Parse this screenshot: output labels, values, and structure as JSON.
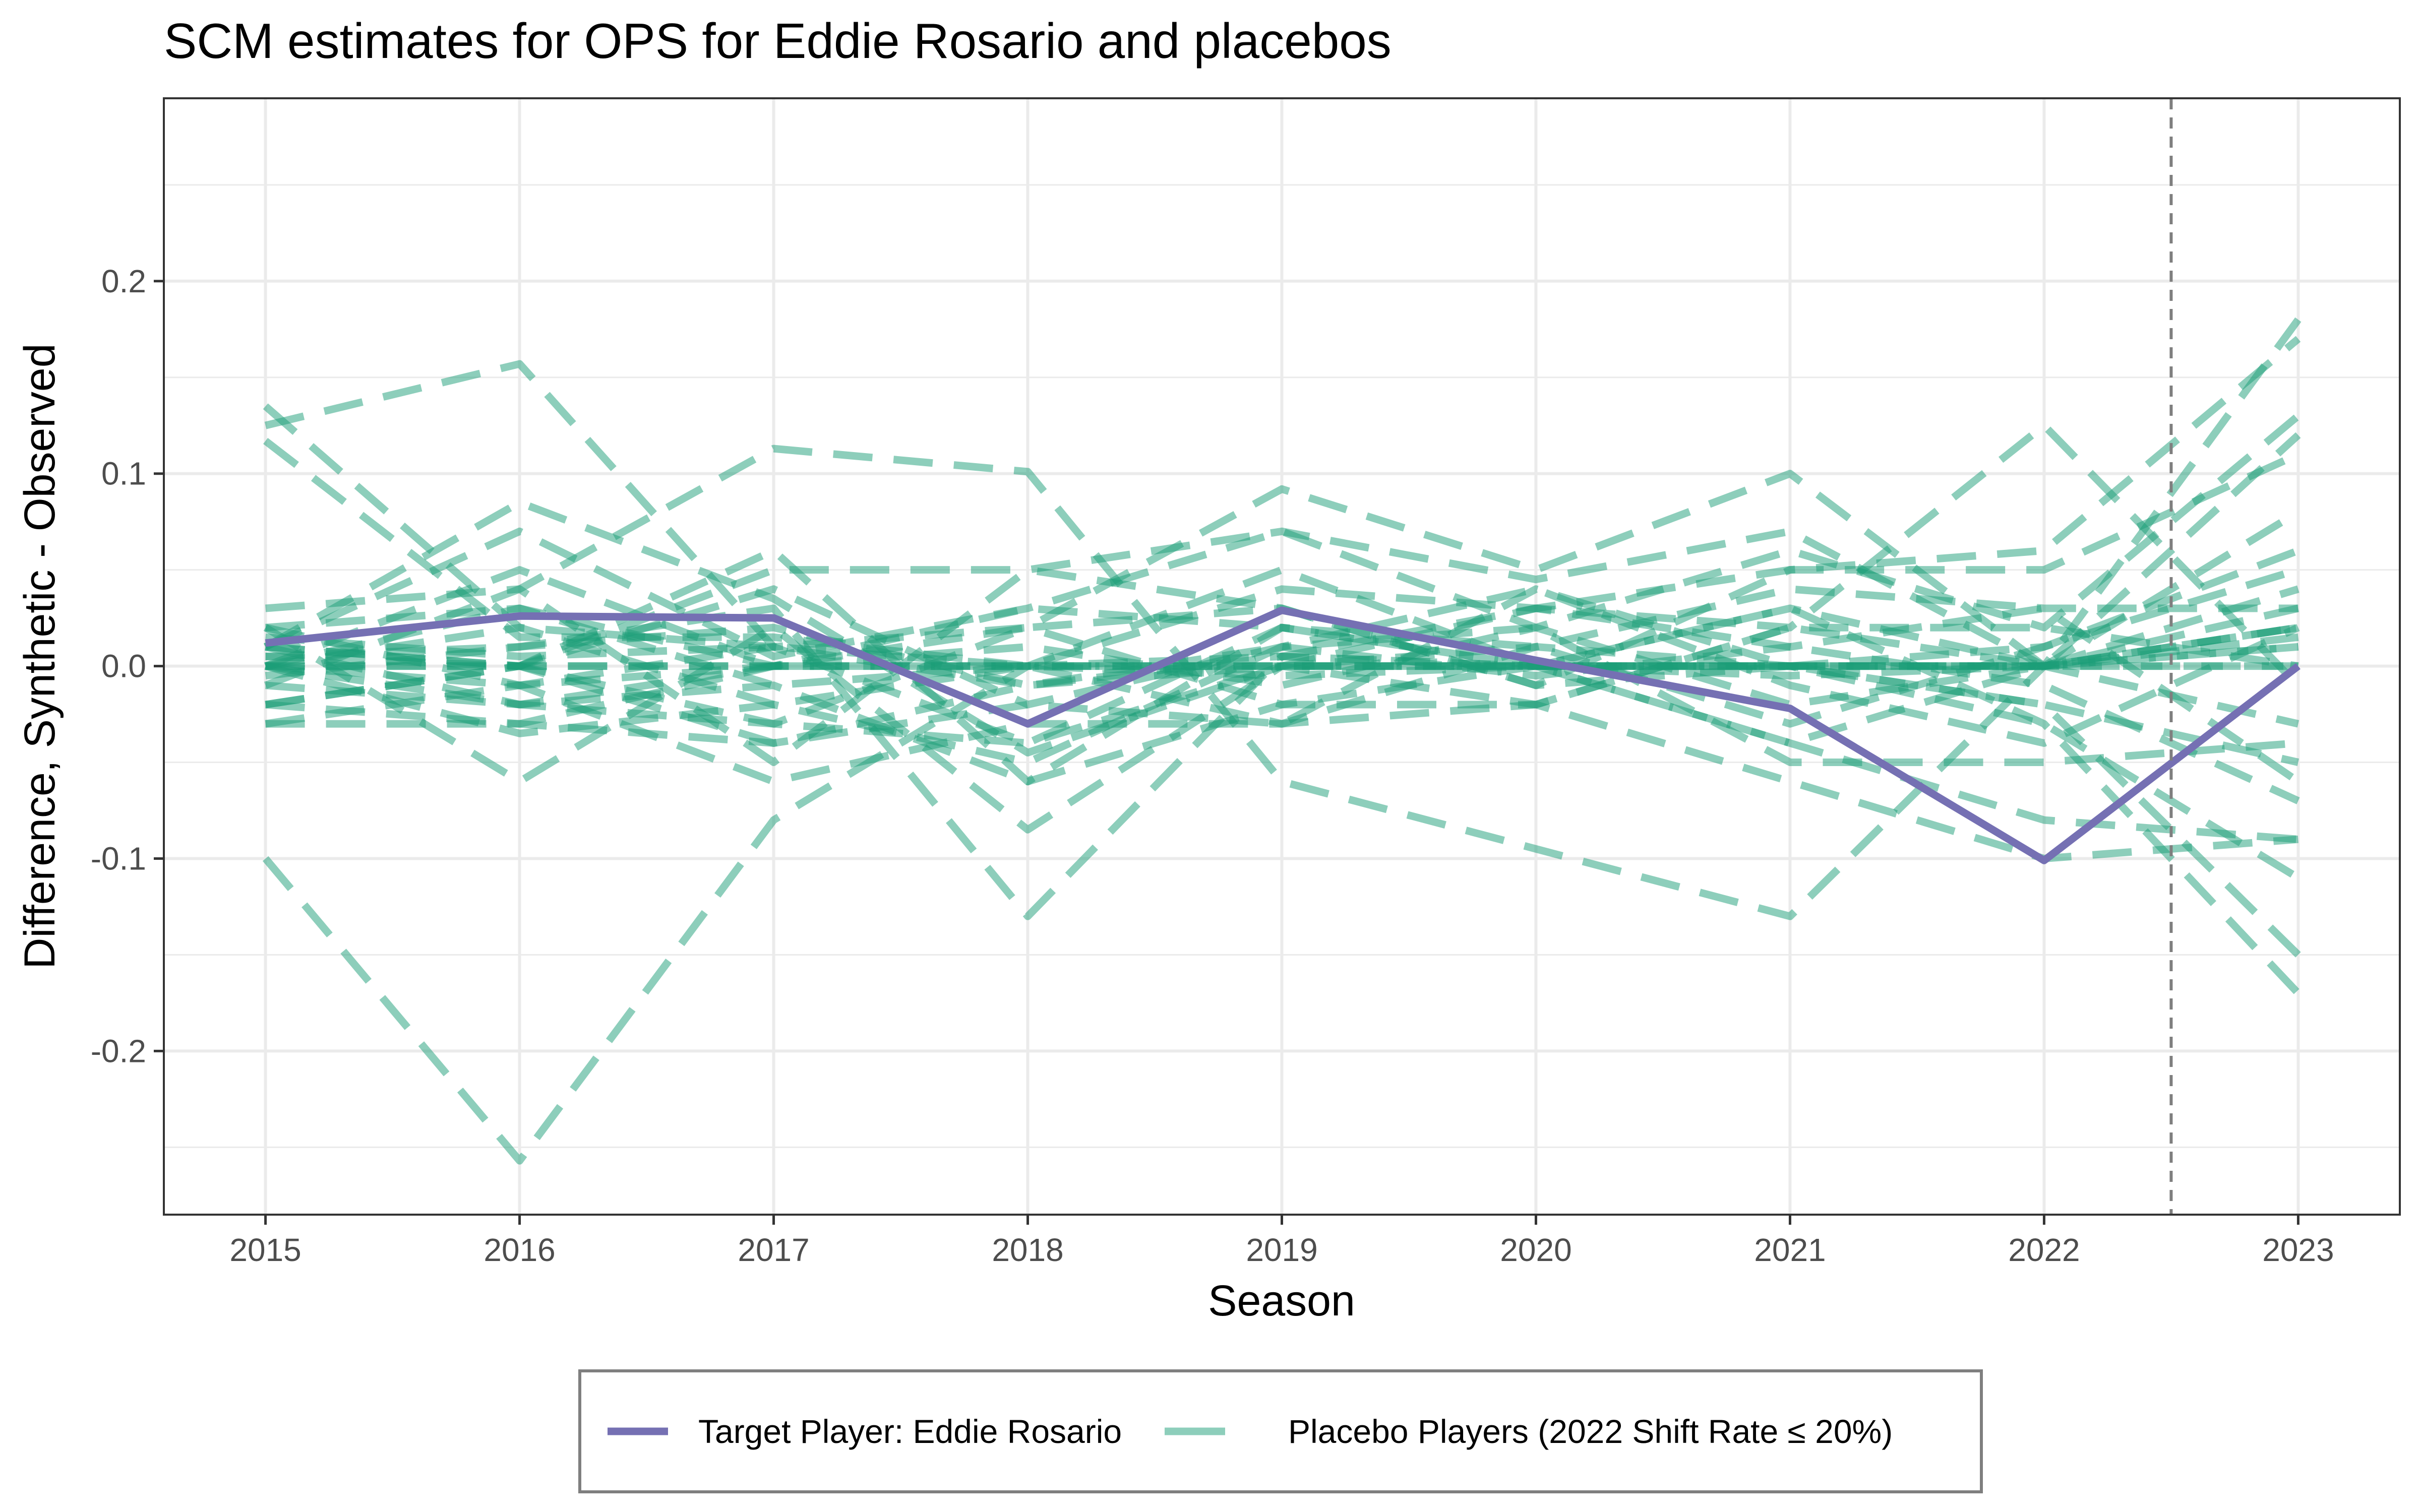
{
  "chart_data": {
    "type": "line",
    "title": "SCM estimates for OPS for Eddie Rosario and placebos",
    "xlabel": "Season",
    "ylabel": "Difference, Synthetic - Observed",
    "x": [
      2015,
      2016,
      2017,
      2018,
      2019,
      2020,
      2021,
      2022,
      2023
    ],
    "x_ticks": [
      "2015",
      "2016",
      "2017",
      "2018",
      "2019",
      "2020",
      "2021",
      "2022",
      "2023"
    ],
    "y_ticks": [
      {
        "value": 0.2,
        "label": "0.2"
      },
      {
        "value": 0.1,
        "label": "0.1"
      },
      {
        "value": 0.0,
        "label": "0.0"
      },
      {
        "value": -0.1,
        "label": "-0.1"
      },
      {
        "value": -0.2,
        "label": "-0.2"
      }
    ],
    "xlim": [
      2014.6,
      2023.4
    ],
    "ylim": [
      -0.285,
      0.295
    ],
    "grid": true,
    "treatment_line_x": 2022.5,
    "legend_position": "bottom",
    "colors": {
      "target": "#7570b3",
      "placebo": "#1b9e77",
      "treatment_line": "#7f7f7f",
      "grid": "#ebebeb",
      "panel_border": "#333333"
    },
    "target": {
      "name": "Target Player: Eddie Rosario",
      "values": [
        0.012,
        0.026,
        0.025,
        -0.03,
        0.029,
        0.003,
        -0.022,
        -0.101,
        0.0
      ]
    },
    "placebo_legend": "Placebo Players (2022 Shift Rate ≤ 20%)",
    "placebos": [
      [
        0.125,
        0.157,
        0.01,
        -0.01,
        0.005,
        0.0,
        -0.005,
        0.0,
        0.02
      ],
      [
        0.135,
        0.02,
        0.01,
        0.0,
        0.005,
        0.0,
        0.0,
        0.0,
        0.01
      ],
      [
        0.117,
        0.015,
        0.015,
        0.0,
        -0.005,
        0.0,
        0.0,
        0.0,
        0.02
      ],
      [
        -0.1,
        -0.257,
        -0.08,
        0.0,
        0.0,
        0.0,
        0.0,
        0.0,
        0.01
      ],
      [
        0.01,
        0.085,
        0.035,
        -0.045,
        0.0,
        0.0,
        0.0,
        0.0,
        0.03
      ],
      [
        0.03,
        0.04,
        0.113,
        0.101,
        -0.06,
        -0.095,
        -0.13,
        0.0,
        0.02
      ],
      [
        0.005,
        0.01,
        0.03,
        -0.13,
        0.005,
        0.03,
        0.02,
        0.125,
        -0.01
      ],
      [
        0.0,
        -0.02,
        0.0,
        0.02,
        0.092,
        0.05,
        0.1,
        0.0,
        0.0
      ],
      [
        -0.02,
        0.0,
        0.05,
        0.05,
        0.07,
        0.045,
        0.07,
        0.0,
        0.18
      ],
      [
        0.02,
        -0.01,
        0.0,
        0.0,
        0.04,
        0.03,
        0.05,
        0.06,
        0.17
      ],
      [
        0.01,
        0.07,
        0.005,
        0.03,
        0.07,
        0.02,
        0.06,
        0.02,
        0.13
      ],
      [
        0.0,
        0.05,
        0.0,
        0.0,
        0.05,
        0.0,
        0.03,
        0.0,
        0.12
      ],
      [
        -0.01,
        0.04,
        -0.05,
        0.05,
        0.03,
        -0.01,
        0.05,
        0.05,
        0.11
      ],
      [
        0.02,
        -0.06,
        0.02,
        -0.085,
        0.0,
        -0.02,
        0.02,
        0.0,
        0.08
      ],
      [
        -0.03,
        -0.03,
        -0.04,
        -0.02,
        -0.03,
        0.04,
        0.0,
        0.01,
        0.06
      ],
      [
        0.0,
        -0.035,
        -0.02,
        -0.05,
        0.01,
        0.02,
        -0.05,
        -0.05,
        -0.04
      ],
      [
        -0.02,
        0.0,
        0.06,
        -0.06,
        0.02,
        0.0,
        -0.04,
        -0.08,
        -0.09
      ],
      [
        0.0,
        -0.01,
        -0.06,
        -0.03,
        -0.03,
        -0.02,
        -0.06,
        -0.1,
        -0.09
      ],
      [
        0.01,
        0.0,
        -0.04,
        -0.01,
        0.0,
        0.01,
        0.0,
        -0.03,
        -0.11
      ],
      [
        0.0,
        0.0,
        -0.03,
        -0.04,
        0.0,
        0.0,
        0.0,
        -0.02,
        -0.15
      ],
      [
        0.01,
        -0.02,
        -0.01,
        -0.06,
        -0.02,
        0.0,
        0.03,
        -0.03,
        -0.17
      ],
      [
        0.005,
        0.0,
        0.0,
        0.0,
        0.0,
        0.0,
        0.0,
        0.0,
        0.0
      ],
      [
        0.0,
        0.0,
        0.0,
        0.0,
        0.0,
        0.0,
        0.0,
        0.0,
        0.015
      ],
      [
        -0.005,
        0.01,
        0.02,
        -0.01,
        0.01,
        -0.005,
        0.01,
        0.03,
        -0.06
      ],
      [
        0.02,
        0.03,
        0.0,
        0.01,
        -0.01,
        0.02,
        -0.02,
        0.0,
        0.04
      ],
      [
        -0.01,
        -0.02,
        -0.03,
        0.02,
        0.03,
        -0.01,
        0.0,
        -0.02,
        -0.05
      ],
      [
        0.0,
        0.02,
        -0.02,
        0.0,
        0.0,
        0.03,
        0.01,
        -0.01,
        -0.07
      ],
      [
        0.015,
        0.005,
        0.01,
        -0.04,
        0.02,
        0.01,
        -0.03,
        0.01,
        0.05
      ],
      [
        -0.03,
        -0.01,
        0.01,
        0.02,
        -0.02,
        -0.02,
        0.02,
        0.02,
        0.0
      ],
      [
        0.01,
        0.0,
        0.04,
        -0.02,
        0.01,
        0.04,
        -0.01,
        -0.04,
        0.02
      ],
      [
        0.0,
        0.03,
        -0.01,
        0.0,
        -0.03,
        0.01,
        0.04,
        0.03,
        0.03
      ],
      [
        -0.02,
        -0.03,
        0.0,
        0.03,
        0.02,
        0.0,
        -0.04,
        0.0,
        -0.03
      ]
    ]
  }
}
